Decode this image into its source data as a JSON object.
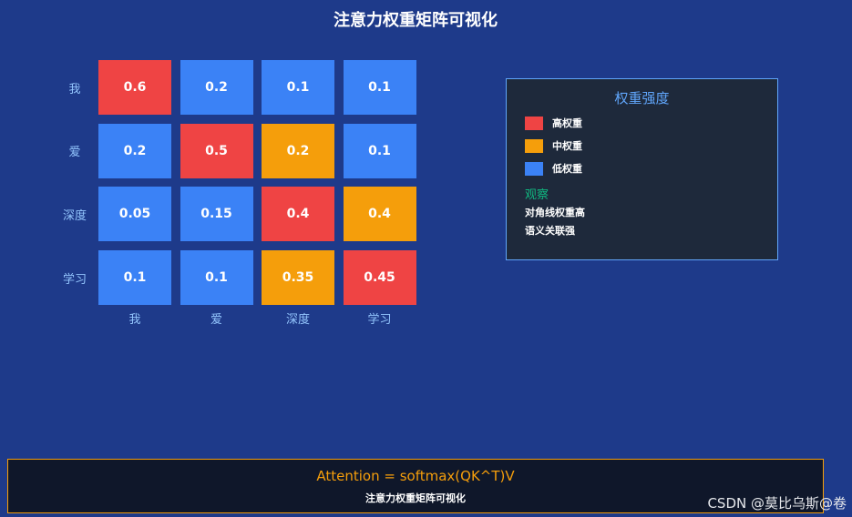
{
  "title": "注意力权重矩阵可视化",
  "colors": {
    "background": "#1e3a8a",
    "high": "#ef4444",
    "medium": "#f59e0b",
    "low": "#3b82f6",
    "label": "#93c5fd",
    "observation": "#10b981"
  },
  "chart_data": {
    "type": "heatmap",
    "rows": [
      "我",
      "爱",
      "深度",
      "学习"
    ],
    "columns": [
      "我",
      "爱",
      "深度",
      "学习"
    ],
    "values": [
      [
        0.6,
        0.2,
        0.1,
        0.1
      ],
      [
        0.2,
        0.5,
        0.2,
        0.1
      ],
      [
        0.05,
        0.15,
        0.4,
        0.4
      ],
      [
        0.1,
        0.1,
        0.35,
        0.45
      ]
    ],
    "value_labels": [
      [
        "0.6",
        "0.2",
        "0.1",
        "0.1"
      ],
      [
        "0.2",
        "0.5",
        "0.2",
        "0.1"
      ],
      [
        "0.05",
        "0.15",
        "0.4",
        "0.4"
      ],
      [
        "0.1",
        "0.1",
        "0.35",
        "0.45"
      ]
    ],
    "levels": [
      [
        "high",
        "low",
        "low",
        "low"
      ],
      [
        "low",
        "high",
        "medium",
        "low"
      ],
      [
        "low",
        "low",
        "high",
        "medium"
      ],
      [
        "low",
        "low",
        "medium",
        "high"
      ]
    ]
  },
  "legend": {
    "title": "权重强度",
    "items": [
      {
        "label": "高权重",
        "level": "high"
      },
      {
        "label": "中权重",
        "level": "medium"
      },
      {
        "label": "低权重",
        "level": "low"
      }
    ],
    "observation_title": "观察",
    "observations": [
      "对角线权重高",
      "语义关联强"
    ]
  },
  "formula": {
    "text": "Attention = softmax(QK^T)V",
    "subtitle": "注意力权重矩阵可视化"
  },
  "watermark": "CSDN @莫比乌斯@卷"
}
